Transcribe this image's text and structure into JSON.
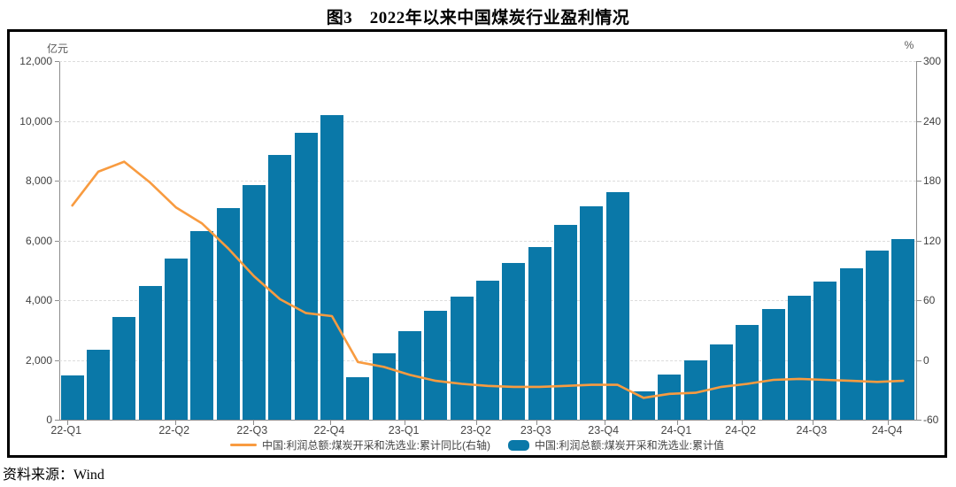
{
  "header": {
    "title": "图3　2022年以来中国煤炭行业盈利情况"
  },
  "footer": {
    "source": "资料来源：Wind"
  },
  "colors": {
    "bar": "#0a78a8",
    "line": "#f89b40",
    "axis": "#8c8c8c",
    "grid": "#dcdcdc",
    "tick_text": "#404040",
    "frame_border": "#000000"
  },
  "chart_data": {
    "type": "bar",
    "subtype": "bar+line combo, monthly cumulative values with quarterly x labels",
    "title": "图3　2022年以来中国煤炭行业盈利情况",
    "categories": [
      "2022-02",
      "2022-03",
      "2022-04",
      "2022-05",
      "2022-06",
      "2022-07",
      "2022-08",
      "2022-09",
      "2022-10",
      "2022-11",
      "2022-12",
      "2023-02",
      "2023-03",
      "2023-04",
      "2023-05",
      "2023-06",
      "2023-07",
      "2023-08",
      "2023-09",
      "2023-10",
      "2023-11",
      "2023-12",
      "2024-02",
      "2024-03",
      "2024-04",
      "2024-05",
      "2024-06",
      "2024-07",
      "2024-08",
      "2024-09",
      "2024-10",
      "2024-11",
      "2024-12"
    ],
    "series": [
      {
        "name": "中国:利润总额:煤炭开采和洗选业:累计值",
        "type": "bar",
        "axis": "left",
        "unit": "亿元",
        "values": [
          1480,
          2356,
          3449,
          4485,
          5380,
          6304,
          7084,
          7856,
          8858,
          9593,
          10202,
          1434,
          2230,
          2960,
          3659,
          4120,
          4663,
          5243,
          5775,
          6530,
          7130,
          7629,
          937,
          1503,
          1990,
          2520,
          3165,
          3700,
          4140,
          4614,
          5070,
          5660,
          6046
        ]
      },
      {
        "name": "中国:利润总额:煤炭开采和洗选业:累计同比(右轴)",
        "type": "line",
        "axis": "right",
        "unit": "%",
        "values": [
          155,
          189,
          199,
          178,
          153,
          137,
          112,
          84,
          61,
          47,
          44,
          -2,
          -7,
          -15,
          -21,
          -24,
          -26,
          -27,
          -27,
          -26,
          -25,
          -25,
          -38,
          -34,
          -33,
          -27,
          -24,
          -20,
          -19,
          -20,
          -21,
          -22,
          -21
        ]
      }
    ],
    "left_axis": {
      "unit": "亿元",
      "min": 0,
      "max": 12000,
      "tick_labels": [
        "12,000",
        "10,000",
        "8,000",
        "6,000",
        "4,000",
        "2,000",
        "0"
      ]
    },
    "right_axis": {
      "unit": "%",
      "min": -60,
      "max": 300,
      "tick_labels": [
        "300",
        "240",
        "180",
        "120",
        "60",
        "0",
        "-60"
      ]
    },
    "x_axis": {
      "labels": [
        "22-Q1",
        "22-Q2",
        "22-Q3",
        "22-Q4",
        "23-Q1",
        "23-Q2",
        "23-Q3",
        "23-Q4",
        "24-Q1",
        "24-Q2",
        "24-Q3",
        "24-Q4"
      ],
      "positions_pct": [
        0.8,
        13.4,
        22.5,
        31.5,
        40.2,
        48.6,
        55.6,
        63.5,
        72.0,
        79.5,
        87.8,
        96.6
      ]
    },
    "legend": [
      {
        "swatch": "line",
        "label": "中国:利润总额:煤炭开采和洗选业:累计同比(右轴)"
      },
      {
        "swatch": "bar",
        "label": "中国:利润总额:煤炭开采和洗选业:累计值"
      }
    ],
    "grid": "horizontal dashed",
    "legend_position": "bottom-center"
  }
}
